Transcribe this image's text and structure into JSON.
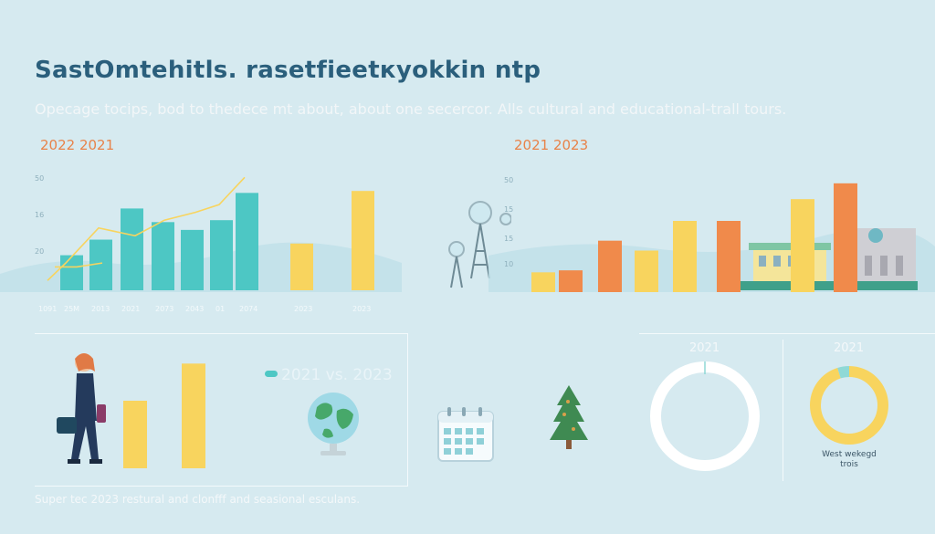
{
  "title": "SastOmtehitls. rasetfieetкyokkin ntp",
  "subtitle": "Opecage tocips, bod to thedece mt about, about one secercor. Alls cultural and educational-trall tours.",
  "footer": "Super tec 2023 restural and clonfff and seasional esculans.",
  "colors": {
    "teal": "#4dc7c4",
    "yellow": "#f8d45e",
    "orange": "#f08a4b",
    "title": "#2b5f7c"
  },
  "left_panel": {
    "label": "2022 2021"
  },
  "right_panel": {
    "label": "2021 2023"
  },
  "compare": {
    "label": "2021 vs. 2023"
  },
  "donuts": [
    {
      "year": "2021",
      "caption_line1": "",
      "caption_line2": ""
    },
    {
      "year": "2021",
      "caption_line1": "West wekegd",
      "caption_line2": "trois"
    }
  ],
  "icons": [
    "radio-tower-icon",
    "globe-icon",
    "calendar-icon",
    "pine-tree-icon",
    "building-icon",
    "traveler-figure"
  ],
  "chart_data": [
    {
      "type": "bar",
      "ytick_labels": [
        "50",
        "16",
        "20"
      ],
      "categories": [
        "1091",
        "25M",
        "2013",
        "2021",
        "2073",
        "2043",
        "01",
        "2074",
        "2023",
        "2023"
      ],
      "values": [
        18,
        26,
        42,
        35,
        31,
        36,
        50,
        0,
        24,
        51
      ],
      "bar_colors": [
        "teal",
        "teal",
        "teal",
        "teal",
        "teal",
        "teal",
        "teal",
        "none",
        "yellow",
        "yellow"
      ],
      "line": [
        5,
        14,
        32,
        28,
        36,
        40,
        44,
        58
      ],
      "line2": [
        12,
        12,
        14
      ],
      "ylim": [
        0,
        60
      ]
    },
    {
      "type": "bar",
      "ytick_labels": [
        "50",
        "15",
        "15",
        "10"
      ],
      "categories": [
        "",
        "",
        "",
        "",
        "",
        "",
        "",
        "",
        "",
        ""
      ],
      "values": [
        10,
        11,
        26,
        21,
        36,
        36,
        0,
        47,
        55,
        0
      ],
      "bar_colors": [
        "yellow",
        "orange",
        "orange",
        "yellow",
        "yellow",
        "orange",
        "none",
        "yellow",
        "orange",
        "none"
      ],
      "ylim": [
        0,
        60
      ]
    },
    {
      "type": "bar",
      "categories": [
        "",
        ""
      ],
      "values": [
        20,
        31
      ],
      "bar_colors": [
        "yellow",
        "yellow"
      ]
    },
    {
      "type": "pie",
      "slices": [
        {
          "value": 100,
          "color": "#ffffff"
        }
      ]
    },
    {
      "type": "pie",
      "slices": [
        {
          "value": 95,
          "color": "#f8d45e"
        },
        {
          "value": 5,
          "color": "#8fd9d6"
        }
      ]
    }
  ]
}
